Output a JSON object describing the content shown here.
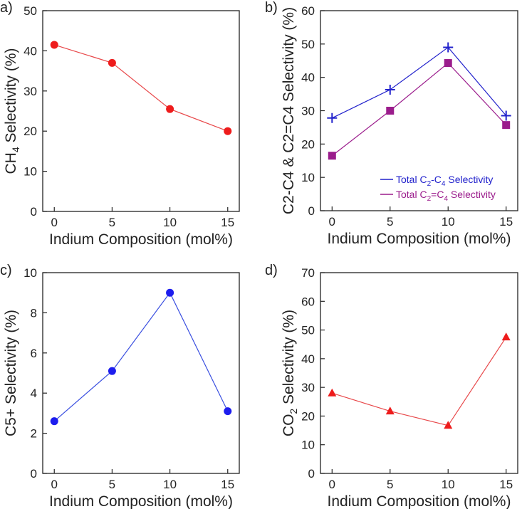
{
  "chart_data": [
    {
      "type": "line",
      "panel_label": "a)",
      "title": "",
      "xlabel": "Indium Composition (mol%)",
      "ylabel": {
        "pre": "CH",
        "sub": "4",
        "post": " Selectivity (%)"
      },
      "x_ticks": [
        0,
        5,
        10,
        15
      ],
      "y_ticks": [
        0,
        10,
        20,
        30,
        40,
        50
      ],
      "xlim": [
        -1,
        16
      ],
      "ylim": [
        0,
        50
      ],
      "series": [
        {
          "name": "CH4 Selectivity",
          "x": [
            0,
            5,
            10,
            15
          ],
          "y": [
            41.5,
            37,
            25.5,
            20
          ],
          "marker": "circle",
          "line_color": "#e8484a",
          "marker_color": "#ee1c1c"
        }
      ]
    },
    {
      "type": "line",
      "panel_label": "b)",
      "title": "",
      "xlabel": "Indium Composition (mol%)",
      "ylabel": {
        "pre": "C2-C4 & C2=C4 Selectivity (%)",
        "sub": "",
        "post": ""
      },
      "x_ticks": [
        0,
        5,
        10,
        15
      ],
      "y_ticks": [
        0,
        10,
        20,
        30,
        40,
        50,
        60
      ],
      "xlim": [
        -1,
        16
      ],
      "ylim": [
        0,
        60
      ],
      "legend_position": "bottom-right",
      "series": [
        {
          "name": "Total C2-C4 Selectivity",
          "legend": {
            "pre": "Total C",
            "s1": "2",
            "mid": "-C",
            "s2": "4",
            "post": " Selectivity"
          },
          "x": [
            0,
            5,
            10,
            15
          ],
          "y": [
            27.8,
            36.3,
            49,
            28.5
          ],
          "marker": "plus",
          "line_color": "#2222cc",
          "marker_color": "#2222cc"
        },
        {
          "name": "Total C2=C4 Selectivity",
          "legend": {
            "pre": "Total C",
            "s1": "2",
            "mid": "=C",
            "s2": "4",
            "post": " Selectivity"
          },
          "x": [
            0,
            5,
            10,
            15
          ],
          "y": [
            16.5,
            30,
            44.3,
            25.7
          ],
          "marker": "square",
          "line_color": "#9b1c8c",
          "marker_color": "#9b1c8c"
        }
      ]
    },
    {
      "type": "line",
      "panel_label": "c)",
      "title": "",
      "xlabel": "Indium Composition (mol%)",
      "ylabel": {
        "pre": "C5+ Selectivity (%)",
        "sub": "",
        "post": ""
      },
      "x_ticks": [
        0,
        5,
        10,
        15
      ],
      "y_ticks": [
        0,
        2,
        4,
        6,
        8,
        10
      ],
      "xlim": [
        -1,
        16
      ],
      "ylim": [
        0,
        10
      ],
      "series": [
        {
          "name": "C5+ Selectivity",
          "x": [
            0,
            5,
            10,
            15
          ],
          "y": [
            2.6,
            5.1,
            9,
            3.1
          ],
          "marker": "circle",
          "line_color": "#3a4fe0",
          "marker_color": "#1d1dee"
        }
      ]
    },
    {
      "type": "line",
      "panel_label": "d)",
      "title": "",
      "xlabel": "Indium Composition (mol%)",
      "ylabel": {
        "pre": "CO",
        "sub": "2",
        "post": " Selectivity (%)"
      },
      "x_ticks": [
        0,
        5,
        10,
        15
      ],
      "y_ticks": [
        0,
        10,
        20,
        30,
        40,
        50,
        60,
        70
      ],
      "xlim": [
        -1,
        16
      ],
      "ylim": [
        0,
        70
      ],
      "series": [
        {
          "name": "CO2 Selectivity",
          "x": [
            0,
            5,
            10,
            15
          ],
          "y": [
            28,
            21.7,
            16.7,
            47.5
          ],
          "marker": "triangle",
          "line_color": "#e8484a",
          "marker_color": "#ee1c1c"
        }
      ]
    }
  ]
}
